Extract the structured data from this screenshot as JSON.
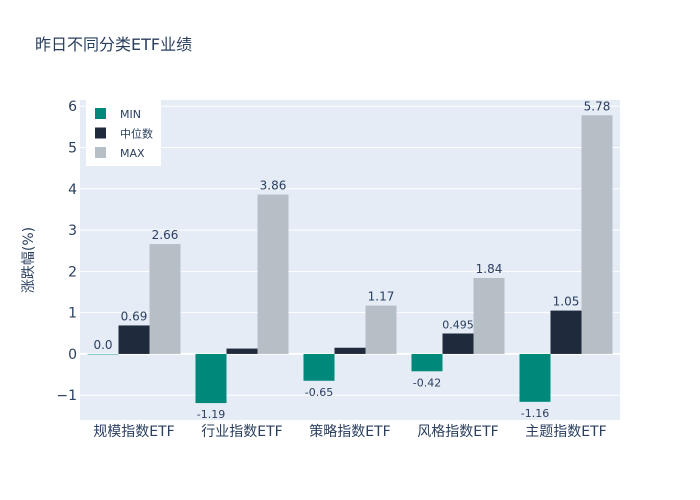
{
  "chart_data": {
    "type": "bar",
    "title": "昨日不同分类ETF业绩",
    "xlabel": "",
    "ylabel": "涨跌幅(%)",
    "ylim": [
      -1.6,
      6.15
    ],
    "yticks": [
      -1,
      0,
      1,
      2,
      3,
      4,
      5,
      6
    ],
    "ytick_labels": [
      "−1",
      "0",
      "1",
      "2",
      "3",
      "4",
      "5",
      "6"
    ],
    "grid": true,
    "legend_position": "top-left",
    "categories": [
      "规模指数ETF",
      "行业指数ETF",
      "策略指数ETF",
      "风格指数ETF",
      "主题指数ETF"
    ],
    "series": [
      {
        "name": "MIN",
        "color": "#00897b",
        "values": [
          0.0,
          -1.19,
          -0.65,
          -0.42,
          -1.16
        ],
        "labels": [
          "0.0",
          "-1.19",
          "-0.65",
          "-0.42",
          "-1.16"
        ]
      },
      {
        "name": "中位数",
        "color": "#1f2a3c",
        "values": [
          0.69,
          0.13,
          0.15,
          0.495,
          1.05
        ],
        "labels": [
          "0.69",
          "",
          "",
          "0.495",
          "1.05"
        ]
      },
      {
        "name": "MAX",
        "color": "#b6bec6",
        "values": [
          2.66,
          3.86,
          1.17,
          1.84,
          5.78
        ],
        "labels": [
          "2.66",
          "3.86",
          "1.17",
          "1.84",
          "5.78"
        ]
      }
    ]
  }
}
